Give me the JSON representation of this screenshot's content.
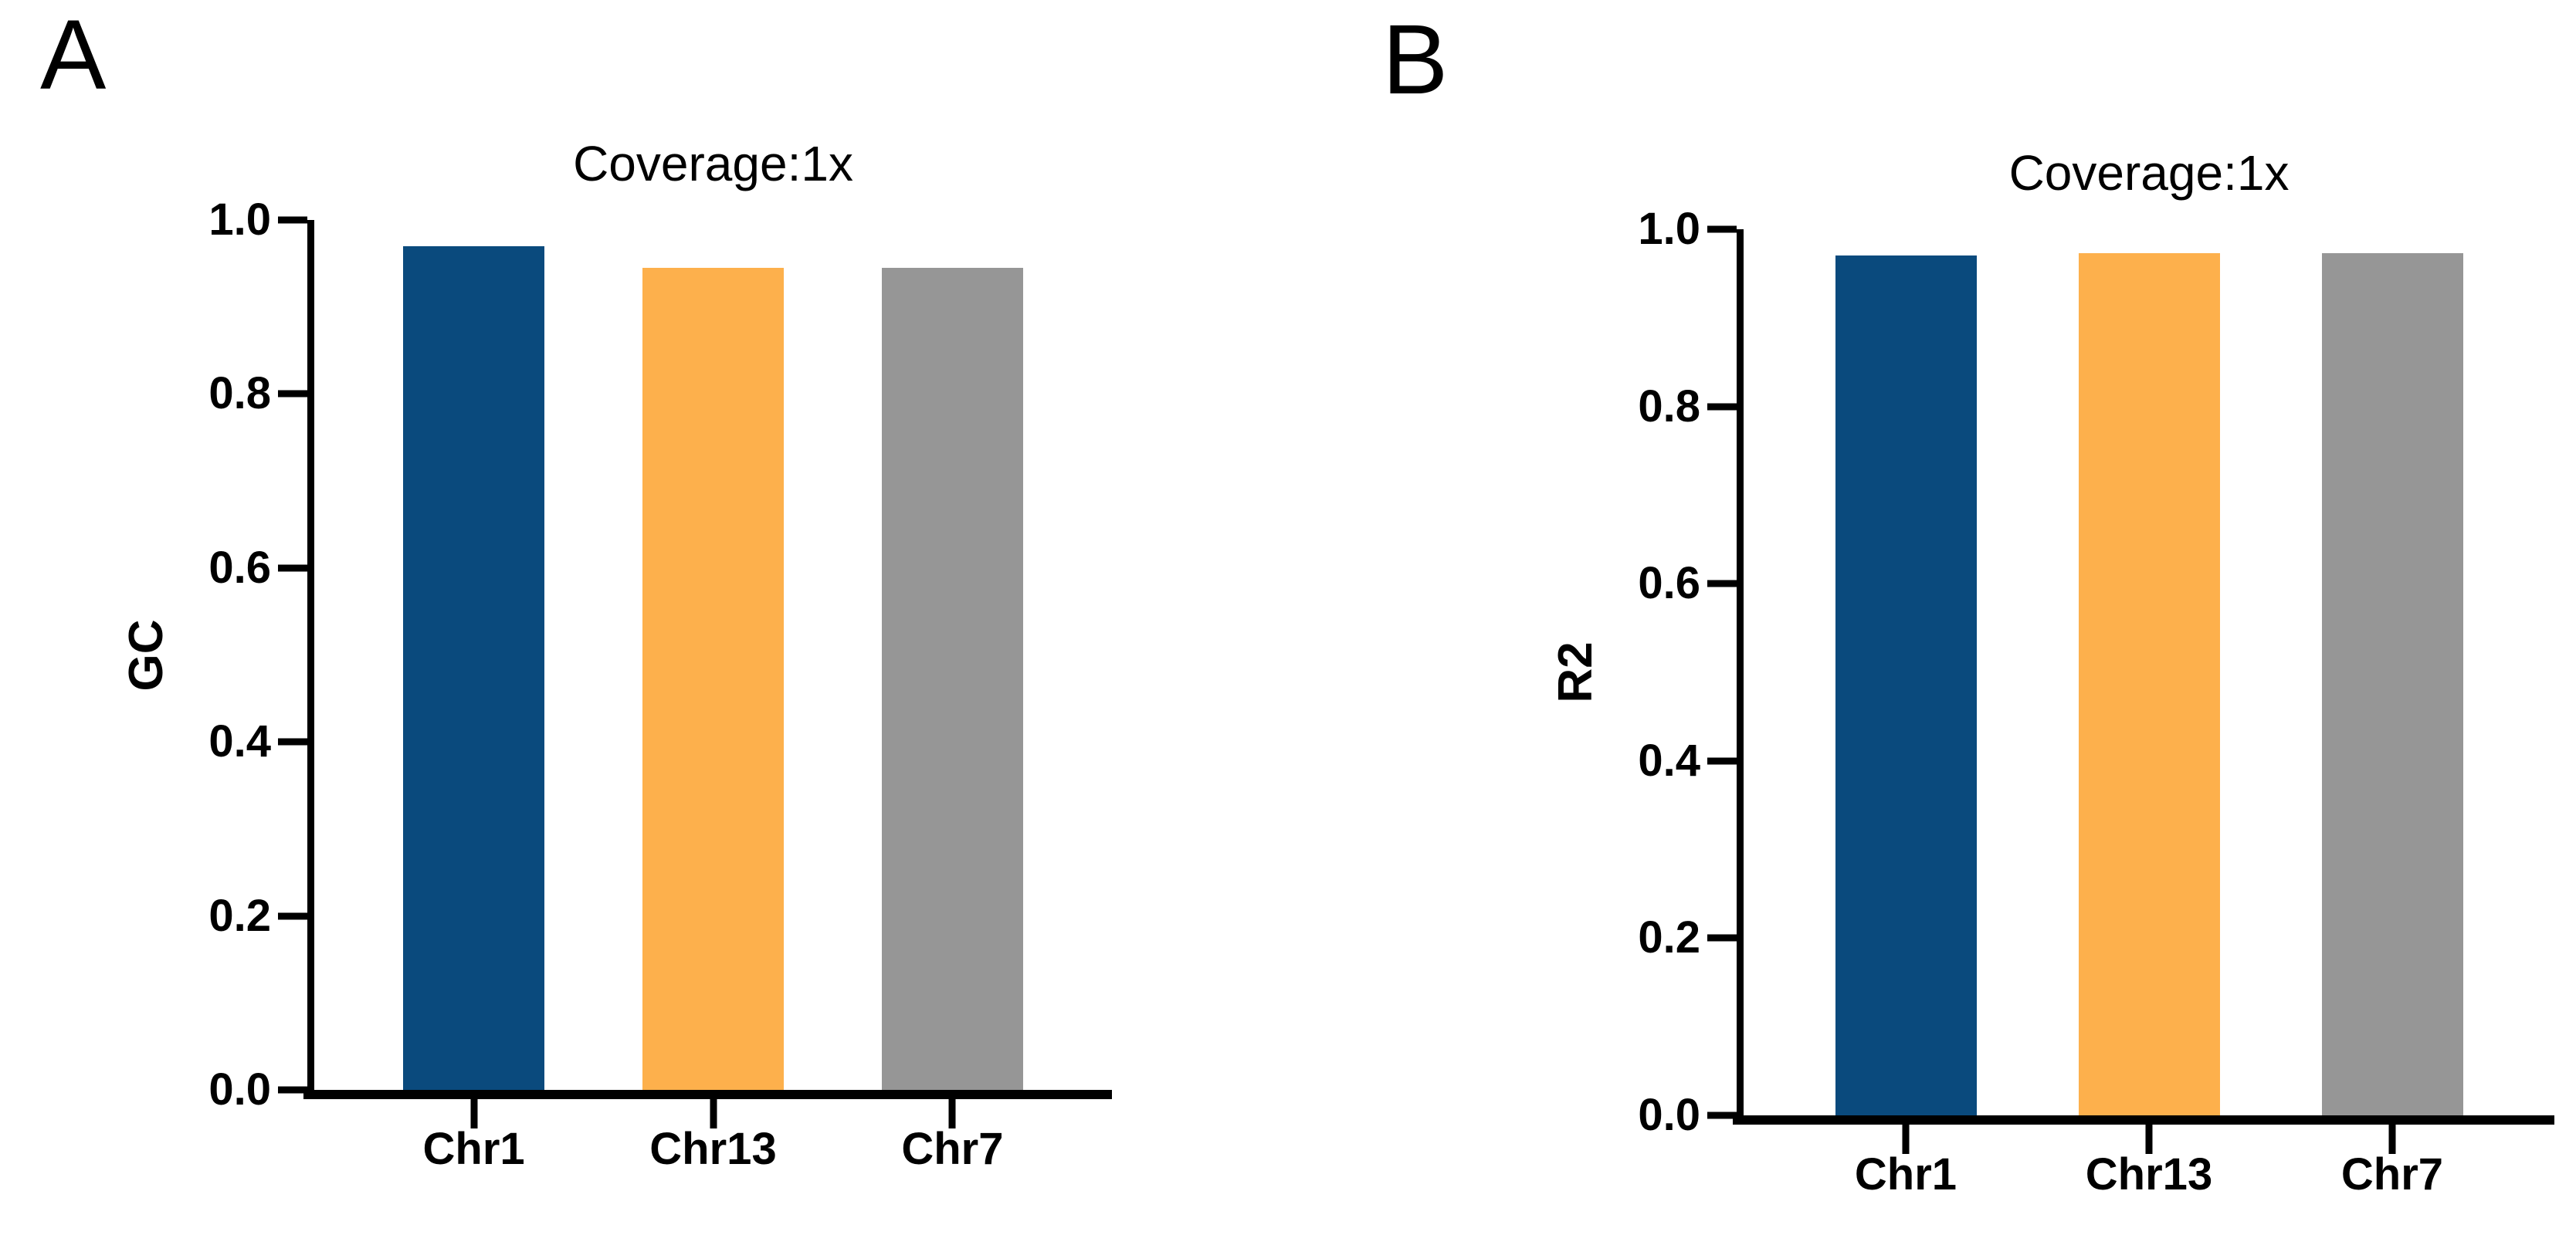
{
  "page": {
    "background": "#ffffff",
    "text_color": "#000000"
  },
  "chart_data": [
    {
      "type": "bar",
      "panel_label": "A",
      "title": "Coverage:1x",
      "xlabel": "",
      "ylabel": "GC",
      "ylim": [
        0.0,
        1.0
      ],
      "y_tick_labels": [
        "1.0",
        "0.8",
        "0.6",
        "0.4",
        "0.2",
        "0.0"
      ],
      "categories": [
        "Chr1",
        "Chr13",
        "Chr7"
      ],
      "values": [
        0.97,
        0.945,
        0.945
      ],
      "bar_colors": [
        "#0A4A7D",
        "#FDB04C",
        "#969696"
      ],
      "grid": "off",
      "legend": "none"
    },
    {
      "type": "bar",
      "panel_label": "B",
      "title": "Coverage:1x",
      "xlabel": "",
      "ylabel": "R2",
      "ylim": [
        0.0,
        1.0
      ],
      "y_tick_labels": [
        "1.0",
        "0.8",
        "0.6",
        "0.4",
        "0.2",
        "0.0"
      ],
      "categories": [
        "Chr1",
        "Chr13",
        "Chr7"
      ],
      "values": [
        0.97,
        0.973,
        0.973
      ],
      "bar_colors": [
        "#0A4A7D",
        "#FDB04C",
        "#969696"
      ],
      "grid": "off",
      "legend": "none"
    }
  ]
}
